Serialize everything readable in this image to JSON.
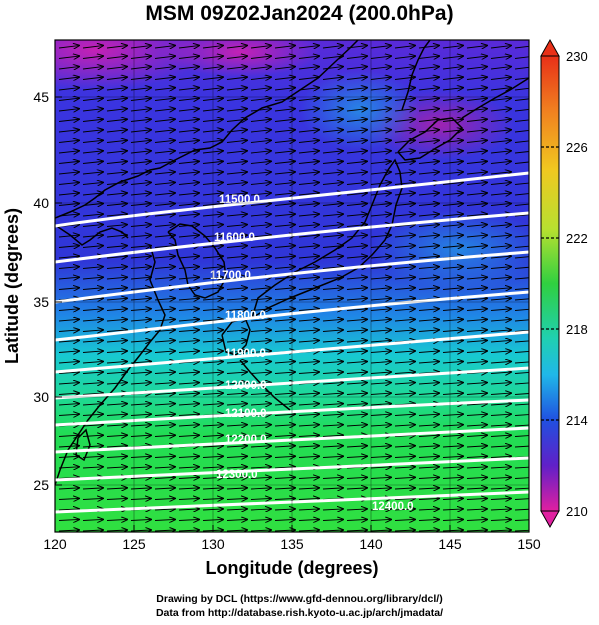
{
  "title": "MSM 09Z02Jan2024 (200.0hPa)",
  "axes": {
    "xlabel": "Longitude (degrees)",
    "ylabel": "Latitude  (degrees)",
    "xlim": [
      120,
      150
    ],
    "ylim": [
      22.4,
      47.6
    ],
    "xticks": [
      "120",
      "125",
      "130",
      "135",
      "140",
      "145",
      "150"
    ],
    "yticks": [
      "25",
      "30",
      "35",
      "40",
      "45"
    ]
  },
  "contours": {
    "labels": [
      "11500.0",
      "11600.0",
      "11700.0",
      "11800.0",
      "11900.0",
      "12000.0",
      "12100.0",
      "12200.0",
      "12300.0",
      "12400.0"
    ]
  },
  "colorbar": {
    "range": [
      210,
      230
    ],
    "tick_labels": [
      "230",
      "226",
      "222",
      "218",
      "214",
      "210"
    ]
  },
  "credits": {
    "line1": "Drawing by DCL (https://www.gfd-dennou.org/library/dcl/)",
    "line2": "Data from http://database.rish.kyoto-u.ac.jp/arch/jmadata/"
  },
  "colors": {
    "field_north": "#3a30e0",
    "field_mid": "#18c0d8",
    "field_south": "#20d84a",
    "field_high": "#c020b0",
    "contour": "#ffffff",
    "coast": "#000000"
  }
}
